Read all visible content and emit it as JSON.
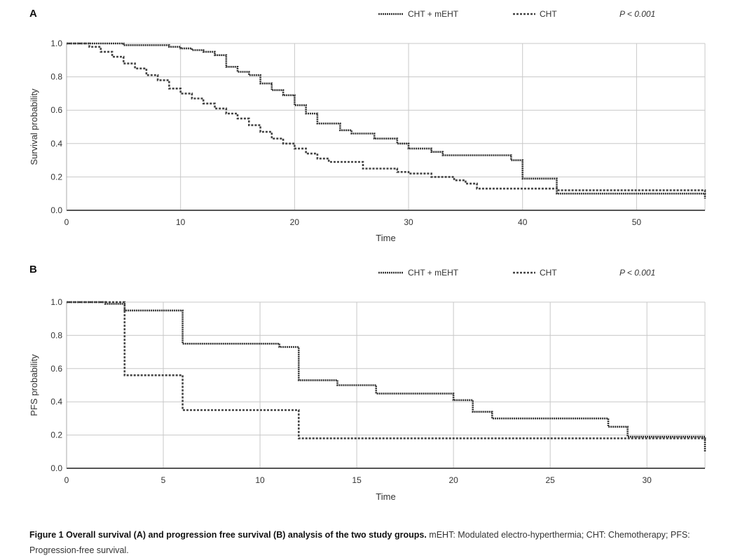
{
  "caption": {
    "bold": "Figure 1 Overall survival (A) and progression free survival (B) analysis of the two study groups.",
    "rest": " mEHT: Modulated electro-hyperthermia; CHT: Chemotherapy; PFS: Progression-free survival."
  },
  "colors": {
    "mEHT": "#333333",
    "CHT": "#444444",
    "grid": "#c8c8c8",
    "axis": "#555555"
  },
  "chart_data": [
    {
      "type": "line",
      "step": true,
      "panel_label": "A",
      "xlabel": "Time",
      "ylabel": "Survival probability",
      "xlim": [
        0,
        56
      ],
      "ylim": [
        0,
        1
      ],
      "xticks": [
        0,
        10,
        20,
        30,
        40,
        50
      ],
      "yticks": [
        0.0,
        0.2,
        0.4,
        0.6,
        0.8,
        1.0
      ],
      "ytick_labels": [
        "0.0",
        "0.2",
        "0.4",
        "0.6",
        "0.8",
        "1.0"
      ],
      "grid": true,
      "legend_position": "top",
      "annotation": "P < 0.001",
      "series": [
        {
          "name": "CHT + mEHT",
          "points": [
            [
              0,
              1.0
            ],
            [
              5,
              0.99
            ],
            [
              9,
              0.98
            ],
            [
              10,
              0.97
            ],
            [
              11,
              0.96
            ],
            [
              12,
              0.95
            ],
            [
              13,
              0.93
            ],
            [
              14,
              0.86
            ],
            [
              15,
              0.83
            ],
            [
              16,
              0.81
            ],
            [
              17,
              0.76
            ],
            [
              18,
              0.72
            ],
            [
              19,
              0.69
            ],
            [
              20,
              0.63
            ],
            [
              21,
              0.58
            ],
            [
              22,
              0.52
            ],
            [
              24,
              0.48
            ],
            [
              25,
              0.46
            ],
            [
              27,
              0.43
            ],
            [
              29,
              0.4
            ],
            [
              30,
              0.37
            ],
            [
              32,
              0.35
            ],
            [
              33,
              0.33
            ],
            [
              37,
              0.33
            ],
            [
              39,
              0.3
            ],
            [
              40,
              0.19
            ],
            [
              43,
              0.1
            ],
            [
              56,
              0.1
            ],
            [
              56,
              0.07
            ]
          ]
        },
        {
          "name": "CHT",
          "points": [
            [
              0,
              1.0
            ],
            [
              2,
              0.98
            ],
            [
              3,
              0.95
            ],
            [
              4,
              0.92
            ],
            [
              5,
              0.88
            ],
            [
              6,
              0.85
            ],
            [
              7,
              0.81
            ],
            [
              8,
              0.78
            ],
            [
              9,
              0.73
            ],
            [
              10,
              0.7
            ],
            [
              11,
              0.67
            ],
            [
              12,
              0.64
            ],
            [
              13,
              0.61
            ],
            [
              14,
              0.58
            ],
            [
              15,
              0.55
            ],
            [
              16,
              0.51
            ],
            [
              17,
              0.47
            ],
            [
              18,
              0.43
            ],
            [
              19,
              0.4
            ],
            [
              20,
              0.37
            ],
            [
              21,
              0.34
            ],
            [
              22,
              0.31
            ],
            [
              23,
              0.29
            ],
            [
              24,
              0.29
            ],
            [
              26,
              0.25
            ],
            [
              29,
              0.23
            ],
            [
              30,
              0.22
            ],
            [
              32,
              0.2
            ],
            [
              34,
              0.18
            ],
            [
              35,
              0.16
            ],
            [
              36,
              0.13
            ],
            [
              40,
              0.13
            ],
            [
              43,
              0.12
            ],
            [
              56,
              0.12
            ],
            [
              56,
              0.1
            ]
          ]
        }
      ]
    },
    {
      "type": "line",
      "step": true,
      "panel_label": "B",
      "xlabel": "Time",
      "ylabel": "PFS probability",
      "xlim": [
        0,
        33
      ],
      "ylim": [
        0,
        1
      ],
      "xticks": [
        0,
        5,
        10,
        15,
        20,
        25,
        30
      ],
      "yticks": [
        0.0,
        0.2,
        0.4,
        0.6,
        0.8,
        1.0
      ],
      "ytick_labels": [
        "0.0",
        "0.2",
        "0.4",
        "0.6",
        "0.8",
        "1.0"
      ],
      "grid": true,
      "legend_position": "top",
      "annotation": "P < 0.001",
      "series": [
        {
          "name": "CHT + mEHT",
          "points": [
            [
              0,
              1.0
            ],
            [
              2,
              0.99
            ],
            [
              3,
              0.95
            ],
            [
              6,
              0.75
            ],
            [
              11,
              0.73
            ],
            [
              12,
              0.53
            ],
            [
              14,
              0.5
            ],
            [
              16,
              0.45
            ],
            [
              20,
              0.41
            ],
            [
              21,
              0.34
            ],
            [
              22,
              0.3
            ],
            [
              28,
              0.25
            ],
            [
              29,
              0.19
            ],
            [
              33,
              0.19
            ],
            [
              33,
              0.1
            ]
          ]
        },
        {
          "name": "CHT",
          "points": [
            [
              0,
              1.0
            ],
            [
              3,
              0.56
            ],
            [
              6,
              0.35
            ],
            [
              12,
              0.18
            ],
            [
              33,
              0.18
            ],
            [
              33,
              0.17
            ]
          ]
        }
      ]
    }
  ]
}
